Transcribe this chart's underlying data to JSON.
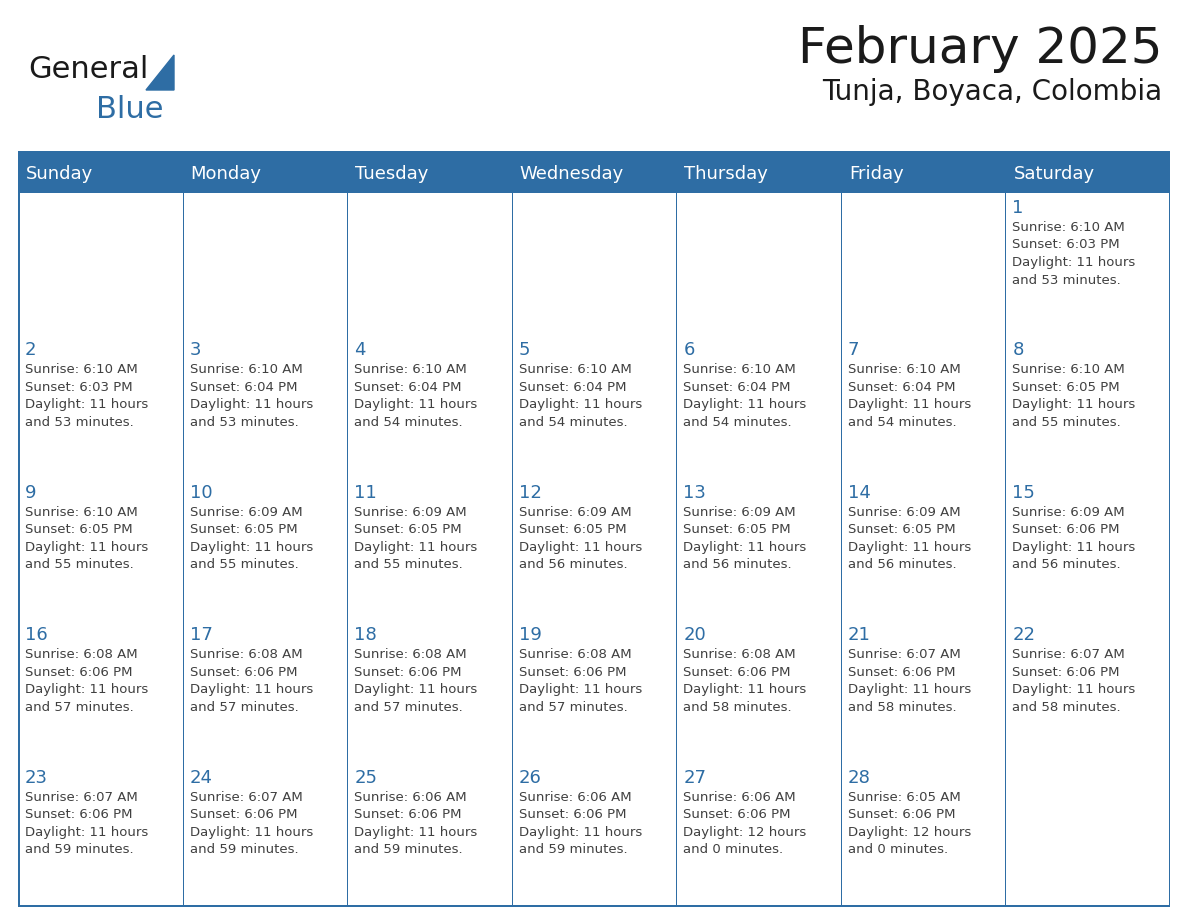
{
  "title": "February 2025",
  "subtitle": "Tunja, Boyaca, Colombia",
  "header_bg": "#2E6DA4",
  "header_text_color": "#FFFFFF",
  "cell_bg": "#FFFFFF",
  "day_number_color": "#2E6DA4",
  "info_text_color": "#404040",
  "border_color": "#2E6DA4",
  "days_of_week": [
    "Sunday",
    "Monday",
    "Tuesday",
    "Wednesday",
    "Thursday",
    "Friday",
    "Saturday"
  ],
  "weeks": [
    [
      {
        "day": null,
        "info": ""
      },
      {
        "day": null,
        "info": ""
      },
      {
        "day": null,
        "info": ""
      },
      {
        "day": null,
        "info": ""
      },
      {
        "day": null,
        "info": ""
      },
      {
        "day": null,
        "info": ""
      },
      {
        "day": 1,
        "info": "Sunrise: 6:10 AM\nSunset: 6:03 PM\nDaylight: 11 hours\nand 53 minutes."
      }
    ],
    [
      {
        "day": 2,
        "info": "Sunrise: 6:10 AM\nSunset: 6:03 PM\nDaylight: 11 hours\nand 53 minutes."
      },
      {
        "day": 3,
        "info": "Sunrise: 6:10 AM\nSunset: 6:04 PM\nDaylight: 11 hours\nand 53 minutes."
      },
      {
        "day": 4,
        "info": "Sunrise: 6:10 AM\nSunset: 6:04 PM\nDaylight: 11 hours\nand 54 minutes."
      },
      {
        "day": 5,
        "info": "Sunrise: 6:10 AM\nSunset: 6:04 PM\nDaylight: 11 hours\nand 54 minutes."
      },
      {
        "day": 6,
        "info": "Sunrise: 6:10 AM\nSunset: 6:04 PM\nDaylight: 11 hours\nand 54 minutes."
      },
      {
        "day": 7,
        "info": "Sunrise: 6:10 AM\nSunset: 6:04 PM\nDaylight: 11 hours\nand 54 minutes."
      },
      {
        "day": 8,
        "info": "Sunrise: 6:10 AM\nSunset: 6:05 PM\nDaylight: 11 hours\nand 55 minutes."
      }
    ],
    [
      {
        "day": 9,
        "info": "Sunrise: 6:10 AM\nSunset: 6:05 PM\nDaylight: 11 hours\nand 55 minutes."
      },
      {
        "day": 10,
        "info": "Sunrise: 6:09 AM\nSunset: 6:05 PM\nDaylight: 11 hours\nand 55 minutes."
      },
      {
        "day": 11,
        "info": "Sunrise: 6:09 AM\nSunset: 6:05 PM\nDaylight: 11 hours\nand 55 minutes."
      },
      {
        "day": 12,
        "info": "Sunrise: 6:09 AM\nSunset: 6:05 PM\nDaylight: 11 hours\nand 56 minutes."
      },
      {
        "day": 13,
        "info": "Sunrise: 6:09 AM\nSunset: 6:05 PM\nDaylight: 11 hours\nand 56 minutes."
      },
      {
        "day": 14,
        "info": "Sunrise: 6:09 AM\nSunset: 6:05 PM\nDaylight: 11 hours\nand 56 minutes."
      },
      {
        "day": 15,
        "info": "Sunrise: 6:09 AM\nSunset: 6:06 PM\nDaylight: 11 hours\nand 56 minutes."
      }
    ],
    [
      {
        "day": 16,
        "info": "Sunrise: 6:08 AM\nSunset: 6:06 PM\nDaylight: 11 hours\nand 57 minutes."
      },
      {
        "day": 17,
        "info": "Sunrise: 6:08 AM\nSunset: 6:06 PM\nDaylight: 11 hours\nand 57 minutes."
      },
      {
        "day": 18,
        "info": "Sunrise: 6:08 AM\nSunset: 6:06 PM\nDaylight: 11 hours\nand 57 minutes."
      },
      {
        "day": 19,
        "info": "Sunrise: 6:08 AM\nSunset: 6:06 PM\nDaylight: 11 hours\nand 57 minutes."
      },
      {
        "day": 20,
        "info": "Sunrise: 6:08 AM\nSunset: 6:06 PM\nDaylight: 11 hours\nand 58 minutes."
      },
      {
        "day": 21,
        "info": "Sunrise: 6:07 AM\nSunset: 6:06 PM\nDaylight: 11 hours\nand 58 minutes."
      },
      {
        "day": 22,
        "info": "Sunrise: 6:07 AM\nSunset: 6:06 PM\nDaylight: 11 hours\nand 58 minutes."
      }
    ],
    [
      {
        "day": 23,
        "info": "Sunrise: 6:07 AM\nSunset: 6:06 PM\nDaylight: 11 hours\nand 59 minutes."
      },
      {
        "day": 24,
        "info": "Sunrise: 6:07 AM\nSunset: 6:06 PM\nDaylight: 11 hours\nand 59 minutes."
      },
      {
        "day": 25,
        "info": "Sunrise: 6:06 AM\nSunset: 6:06 PM\nDaylight: 11 hours\nand 59 minutes."
      },
      {
        "day": 26,
        "info": "Sunrise: 6:06 AM\nSunset: 6:06 PM\nDaylight: 11 hours\nand 59 minutes."
      },
      {
        "day": 27,
        "info": "Sunrise: 6:06 AM\nSunset: 6:06 PM\nDaylight: 12 hours\nand 0 minutes."
      },
      {
        "day": 28,
        "info": "Sunrise: 6:05 AM\nSunset: 6:06 PM\nDaylight: 12 hours\nand 0 minutes."
      },
      {
        "day": null,
        "info": ""
      }
    ]
  ],
  "title_fontsize": 36,
  "subtitle_fontsize": 20,
  "header_fontsize": 13,
  "day_number_fontsize": 13,
  "info_fontsize": 9.5
}
